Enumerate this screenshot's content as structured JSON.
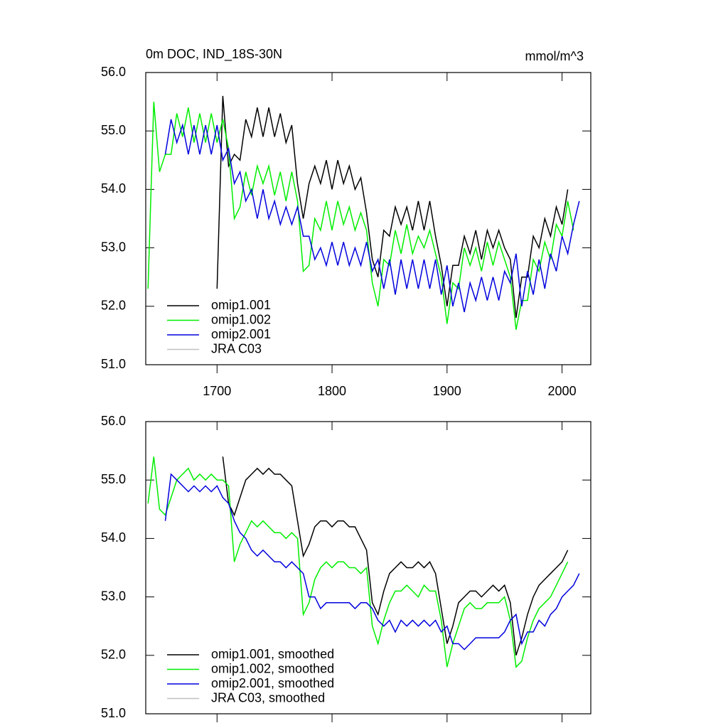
{
  "chart_data": [
    {
      "type": "line",
      "title": "0m DOC, IND_18S-30N",
      "units": "mmol/m^3",
      "x": [
        1640,
        1645,
        1650,
        1655,
        1660,
        1665,
        1670,
        1675,
        1680,
        1685,
        1690,
        1695,
        1700,
        1705,
        1710,
        1715,
        1720,
        1725,
        1730,
        1735,
        1740,
        1745,
        1750,
        1755,
        1760,
        1765,
        1770,
        1775,
        1780,
        1785,
        1790,
        1795,
        1800,
        1805,
        1810,
        1815,
        1820,
        1825,
        1830,
        1835,
        1840,
        1845,
        1850,
        1855,
        1860,
        1865,
        1870,
        1875,
        1880,
        1885,
        1890,
        1895,
        1900,
        1905,
        1910,
        1915,
        1920,
        1925,
        1930,
        1935,
        1940,
        1945,
        1950,
        1955,
        1960,
        1965,
        1970,
        1975,
        1980,
        1985,
        1990,
        1995,
        2000,
        2005,
        2010,
        2015
      ],
      "xlim": [
        1638,
        2025
      ],
      "xticks": [
        1700,
        1800,
        1900,
        2000
      ],
      "xtick_labels": true,
      "ylim": [
        51,
        56
      ],
      "yticks": [
        {
          "value": 51,
          "label": "51.0"
        },
        {
          "value": 52,
          "label": "52.0"
        },
        {
          "value": 53,
          "label": "53.0"
        },
        {
          "value": 54,
          "label": "54.0"
        },
        {
          "value": 55,
          "label": "55.0"
        },
        {
          "value": 56,
          "label": "56.0"
        }
      ],
      "legend": "lower left",
      "series": [
        {
          "name": "omip1.001",
          "color": "#000000",
          "values": [
            null,
            null,
            null,
            null,
            null,
            null,
            null,
            null,
            null,
            null,
            null,
            null,
            52.3,
            55.6,
            54.4,
            54.6,
            54.5,
            55.2,
            54.9,
            55.4,
            54.9,
            55.4,
            54.9,
            55.3,
            54.8,
            55.1,
            54.1,
            53.5,
            54.1,
            54.4,
            54.1,
            54.5,
            54.0,
            54.5,
            54.1,
            54.4,
            54.0,
            54.2,
            53.6,
            52.8,
            52.5,
            53.3,
            53.2,
            53.7,
            53.4,
            53.7,
            53.3,
            53.8,
            53.3,
            53.8,
            53.2,
            52.7,
            52.0,
            52.7,
            52.7,
            53.2,
            52.9,
            53.3,
            52.8,
            53.3,
            53.0,
            53.3,
            53.0,
            52.8,
            51.8,
            52.5,
            52.5,
            53.2,
            53.0,
            53.5,
            53.2,
            53.7,
            53.4,
            54.0,
            null,
            null
          ]
        },
        {
          "name": "omip1.002",
          "color": "#00ee00",
          "values": [
            52.3,
            55.5,
            54.3,
            54.6,
            54.6,
            55.3,
            54.9,
            55.4,
            54.8,
            55.3,
            54.8,
            55.3,
            54.8,
            55.2,
            54.7,
            53.5,
            53.7,
            54.3,
            53.9,
            54.4,
            54.1,
            54.4,
            53.9,
            54.3,
            53.8,
            54.3,
            53.8,
            52.6,
            52.7,
            53.5,
            53.3,
            53.8,
            53.3,
            53.8,
            53.4,
            53.7,
            53.3,
            53.6,
            53.3,
            52.4,
            52.0,
            52.8,
            52.7,
            53.3,
            52.9,
            53.4,
            52.9,
            53.2,
            53.0,
            53.3,
            52.9,
            52.5,
            51.7,
            52.4,
            52.3,
            53.0,
            52.7,
            53.0,
            52.6,
            53.1,
            52.7,
            53.1,
            52.8,
            52.5,
            51.6,
            52.1,
            52.1,
            52.8,
            52.6,
            53.1,
            52.8,
            53.4,
            53.2,
            53.8,
            53.3,
            null
          ]
        },
        {
          "name": "omip2.001",
          "color": "#0000dd",
          "values": [
            null,
            null,
            null,
            54.6,
            55.2,
            54.8,
            55.1,
            54.6,
            55.1,
            54.6,
            55.1,
            54.6,
            55.1,
            54.5,
            54.7,
            54.1,
            54.3,
            53.8,
            54.0,
            53.5,
            54.0,
            53.5,
            53.8,
            53.4,
            53.7,
            53.4,
            53.7,
            53.2,
            53.2,
            52.8,
            53.0,
            52.7,
            53.1,
            52.7,
            53.1,
            52.7,
            53.0,
            52.7,
            53.1,
            52.6,
            52.8,
            52.3,
            52.8,
            52.2,
            52.8,
            52.3,
            52.8,
            52.3,
            52.8,
            52.3,
            52.8,
            52.2,
            52.7,
            52.0,
            52.4,
            51.9,
            52.4,
            52.1,
            52.5,
            52.1,
            52.5,
            52.1,
            52.6,
            52.4,
            52.9,
            52.0,
            52.6,
            52.2,
            52.8,
            52.3,
            52.9,
            52.6,
            53.2,
            52.9,
            53.4,
            53.8
          ]
        },
        {
          "name": "JRA C03",
          "color": "#c0c0c0",
          "values": [
            null,
            null,
            null,
            null,
            null,
            null,
            null,
            null,
            null,
            null,
            null,
            null,
            null,
            null,
            null,
            null,
            null,
            null,
            null,
            null,
            null,
            null,
            null,
            null,
            null,
            null,
            null,
            null,
            null,
            null,
            null,
            null,
            null,
            null,
            null,
            null,
            null,
            null,
            null,
            null,
            null,
            null,
            null,
            null,
            null,
            null,
            null,
            null,
            null,
            null,
            null,
            null,
            null,
            null,
            null,
            null,
            null,
            null,
            null,
            null,
            null,
            null,
            null,
            null,
            null,
            null,
            null,
            null,
            null,
            null,
            null,
            null,
            null,
            null,
            null,
            null
          ]
        }
      ]
    },
    {
      "type": "line",
      "x": [
        1640,
        1645,
        1650,
        1655,
        1660,
        1665,
        1670,
        1675,
        1680,
        1685,
        1690,
        1695,
        1700,
        1705,
        1710,
        1715,
        1720,
        1725,
        1730,
        1735,
        1740,
        1745,
        1750,
        1755,
        1760,
        1765,
        1770,
        1775,
        1780,
        1785,
        1790,
        1795,
        1800,
        1805,
        1810,
        1815,
        1820,
        1825,
        1830,
        1835,
        1840,
        1845,
        1850,
        1855,
        1860,
        1865,
        1870,
        1875,
        1880,
        1885,
        1890,
        1895,
        1900,
        1905,
        1910,
        1915,
        1920,
        1925,
        1930,
        1935,
        1940,
        1945,
        1950,
        1955,
        1960,
        1965,
        1970,
        1975,
        1980,
        1985,
        1990,
        1995,
        2000,
        2005,
        2010,
        2015
      ],
      "xlim": [
        1638,
        2025
      ],
      "xticks": [
        1700,
        1800,
        1900,
        2000
      ],
      "xtick_labels": false,
      "ylim": [
        51,
        56
      ],
      "yticks": [
        {
          "value": 51,
          "label": "51.0"
        },
        {
          "value": 52,
          "label": "52.0"
        },
        {
          "value": 53,
          "label": "53.0"
        },
        {
          "value": 54,
          "label": "54.0"
        },
        {
          "value": 55,
          "label": "55.0"
        },
        {
          "value": 56,
          "label": "56.0"
        }
      ],
      "legend": "lower left",
      "series": [
        {
          "name": "omip1.001, smoothed",
          "color": "#000000",
          "values": [
            null,
            null,
            null,
            null,
            null,
            null,
            null,
            null,
            null,
            null,
            null,
            null,
            null,
            55.4,
            54.6,
            54.4,
            54.7,
            55.0,
            55.1,
            55.2,
            55.1,
            55.2,
            55.1,
            55.1,
            55.0,
            54.9,
            54.3,
            53.7,
            53.9,
            54.2,
            54.3,
            54.3,
            54.2,
            54.3,
            54.3,
            54.2,
            54.2,
            54.0,
            53.8,
            52.9,
            52.7,
            53.1,
            53.4,
            53.5,
            53.6,
            53.5,
            53.5,
            53.6,
            53.5,
            53.6,
            53.4,
            52.8,
            52.2,
            52.5,
            52.9,
            53.0,
            53.1,
            53.1,
            53.0,
            53.1,
            53.2,
            53.1,
            53.2,
            52.9,
            52.0,
            52.3,
            52.7,
            53.0,
            53.2,
            53.3,
            53.4,
            53.5,
            53.6,
            53.8,
            null,
            null
          ]
        },
        {
          "name": "omip1.002, smoothed",
          "color": "#00ee00",
          "values": [
            54.6,
            55.4,
            54.5,
            54.4,
            54.7,
            55.0,
            55.1,
            55.2,
            55.0,
            55.1,
            55.0,
            55.1,
            55.0,
            55.0,
            54.9,
            53.6,
            53.9,
            54.1,
            54.3,
            54.2,
            54.3,
            54.2,
            54.1,
            54.1,
            54.0,
            54.1,
            54.0,
            52.7,
            52.9,
            53.3,
            53.5,
            53.6,
            53.5,
            53.6,
            53.6,
            53.5,
            53.5,
            53.4,
            53.5,
            52.5,
            52.2,
            52.6,
            52.9,
            53.1,
            53.1,
            53.2,
            53.1,
            53.0,
            53.2,
            53.1,
            53.1,
            52.6,
            51.8,
            52.2,
            52.5,
            52.8,
            52.9,
            52.8,
            52.8,
            52.9,
            52.9,
            52.9,
            53.0,
            52.6,
            51.8,
            51.9,
            52.3,
            52.6,
            52.8,
            52.9,
            53.0,
            53.2,
            53.4,
            53.6,
            null,
            null
          ]
        },
        {
          "name": "omip2.001, smoothed",
          "color": "#0000dd",
          "values": [
            null,
            null,
            null,
            54.3,
            55.1,
            55.0,
            54.9,
            54.8,
            54.9,
            54.8,
            54.9,
            54.8,
            54.9,
            54.7,
            54.6,
            54.3,
            54.1,
            54.0,
            53.8,
            53.7,
            53.8,
            53.7,
            53.6,
            53.6,
            53.5,
            53.6,
            53.5,
            53.4,
            53.0,
            53.0,
            52.8,
            52.9,
            52.9,
            52.9,
            52.9,
            52.9,
            52.8,
            52.9,
            52.9,
            52.8,
            52.6,
            52.5,
            52.6,
            52.4,
            52.6,
            52.5,
            52.6,
            52.5,
            52.6,
            52.5,
            52.6,
            52.4,
            52.5,
            52.2,
            52.2,
            52.1,
            52.2,
            52.3,
            52.3,
            52.3,
            52.3,
            52.3,
            52.4,
            52.6,
            52.7,
            52.2,
            52.4,
            52.4,
            52.6,
            52.5,
            52.7,
            52.8,
            53.0,
            53.1,
            53.2,
            53.4
          ]
        },
        {
          "name": "JRA C03, smoothed",
          "color": "#c0c0c0",
          "values": [
            null,
            null,
            null,
            null,
            null,
            null,
            null,
            null,
            null,
            null,
            null,
            null,
            null,
            null,
            null,
            null,
            null,
            null,
            null,
            null,
            null,
            null,
            null,
            null,
            null,
            null,
            null,
            null,
            null,
            null,
            null,
            null,
            null,
            null,
            null,
            null,
            null,
            null,
            null,
            null,
            null,
            null,
            null,
            null,
            null,
            null,
            null,
            null,
            null,
            null,
            null,
            null,
            null,
            null,
            null,
            null,
            null,
            null,
            null,
            null,
            null,
            null,
            null,
            null,
            null,
            null,
            null,
            null,
            null,
            null,
            null,
            null,
            null,
            null,
            null,
            null
          ]
        }
      ]
    }
  ]
}
